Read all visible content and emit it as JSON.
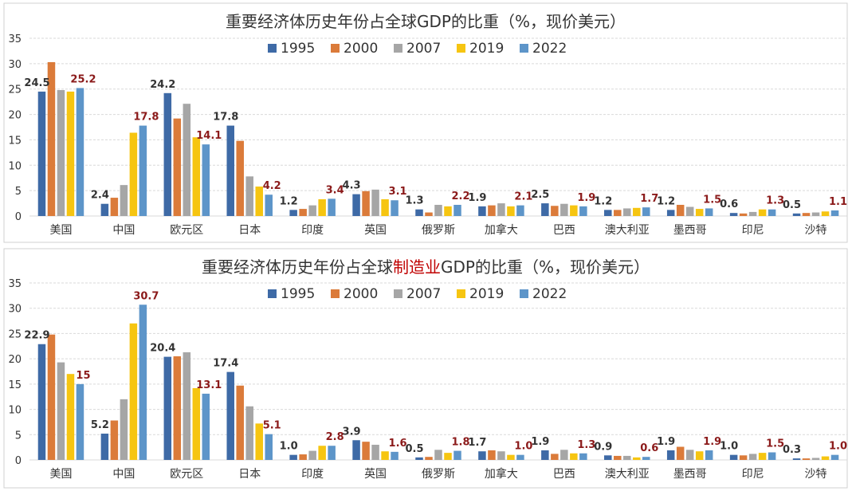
{
  "colors": {
    "series": [
      "#3E6AA6",
      "#DB7B3A",
      "#A6A6A6",
      "#F6C511",
      "#5D95C9"
    ],
    "highlight_text": "#8B1A1A",
    "label_text": "#333333",
    "title_text": "#333333",
    "title_highlight": "#C00000",
    "grid": "#D9D9D9",
    "panel_border": "#D0D0D0"
  },
  "chart_data": [
    {
      "type": "bar",
      "title_parts": [
        {
          "text": "重要经济体历史年份占全球GDP的比重（%，现价美元）",
          "highlight": false
        }
      ],
      "title": "重要经济体历史年份占全球GDP的比重（%，现价美元）",
      "categories": [
        "美国",
        "中国",
        "欧元区",
        "日本",
        "印度",
        "英国",
        "俄罗斯",
        "加拿大",
        "巴西",
        "澳大利亚",
        "墨西哥",
        "印尼",
        "沙特"
      ],
      "series": [
        {
          "name": "1995",
          "values": [
            24.5,
            2.4,
            24.2,
            17.8,
            1.2,
            4.3,
            1.3,
            1.9,
            2.5,
            1.2,
            1.2,
            0.6,
            0.5
          ]
        },
        {
          "name": "2000",
          "values": [
            30.3,
            3.6,
            19.2,
            14.8,
            1.4,
            4.9,
            0.7,
            2.1,
            2.0,
            1.2,
            2.2,
            0.5,
            0.6
          ]
        },
        {
          "name": "2007",
          "values": [
            24.8,
            6.1,
            22.1,
            7.8,
            2.1,
            5.2,
            2.2,
            2.5,
            2.4,
            1.5,
            1.8,
            0.8,
            0.7
          ]
        },
        {
          "name": "2019",
          "values": [
            24.5,
            16.4,
            15.5,
            5.8,
            3.3,
            3.3,
            1.9,
            1.9,
            2.1,
            1.6,
            1.4,
            1.3,
            0.9
          ]
        },
        {
          "name": "2022",
          "values": [
            25.2,
            17.8,
            14.1,
            4.2,
            3.4,
            3.1,
            2.2,
            2.1,
            1.9,
            1.7,
            1.5,
            1.3,
            1.1
          ]
        }
      ],
      "labels_1995": [
        "24.5",
        "2.4",
        "24.2",
        "17.8",
        "1.2",
        "4.3",
        "1.3",
        "1.9",
        "2.5",
        "1.2",
        "1.2",
        "0.6",
        "0.5"
      ],
      "labels_2022": [
        "25.2",
        "17.8",
        "14.1",
        "4.2",
        "3.4",
        "3.1",
        "2.2",
        "2.1",
        "1.9",
        "1.7",
        "1.5",
        "1.3",
        "1.1"
      ],
      "ylim": [
        0,
        35
      ],
      "yticks": [
        0,
        5,
        10,
        15,
        20,
        25,
        30,
        35
      ],
      "grid": true,
      "legend": "top-center",
      "xlabel": "",
      "ylabel": ""
    },
    {
      "type": "bar",
      "title_parts": [
        {
          "text": "重要经济体历史年份占全球",
          "highlight": false
        },
        {
          "text": "制造业",
          "highlight": true
        },
        {
          "text": "GDP的比重（%，现价美元）",
          "highlight": false
        }
      ],
      "title": "重要经济体历史年份占全球制造业GDP的比重（%，现价美元）",
      "categories": [
        "美国",
        "中国",
        "欧元区",
        "日本",
        "印度",
        "英国",
        "俄罗斯",
        "加拿大",
        "巴西",
        "澳大利亚",
        "墨西哥",
        "印尼",
        "沙特"
      ],
      "series": [
        {
          "name": "1995",
          "values": [
            22.9,
            5.2,
            20.4,
            17.4,
            1.0,
            3.9,
            0.5,
            1.7,
            1.9,
            0.9,
            1.9,
            1.0,
            0.3
          ]
        },
        {
          "name": "2000",
          "values": [
            24.8,
            7.8,
            20.5,
            14.7,
            1.1,
            3.6,
            0.6,
            1.9,
            1.2,
            0.8,
            2.6,
            0.9,
            0.3
          ]
        },
        {
          "name": "2007",
          "values": [
            19.3,
            12.0,
            21.3,
            10.6,
            1.8,
            3.0,
            2.0,
            1.7,
            2.0,
            0.8,
            2.0,
            1.2,
            0.4
          ]
        },
        {
          "name": "2019",
          "values": [
            17.0,
            27.0,
            14.2,
            7.2,
            2.8,
            1.7,
            1.4,
            1.0,
            1.3,
            0.5,
            1.7,
            1.4,
            0.7
          ]
        },
        {
          "name": "2022",
          "values": [
            15.0,
            30.7,
            13.1,
            5.1,
            2.8,
            1.6,
            1.8,
            1.0,
            1.3,
            0.6,
            1.9,
            1.5,
            1.0
          ]
        }
      ],
      "labels_1995": [
        "22.9",
        "5.2",
        "20.4",
        "17.4",
        "1.0",
        "3.9",
        "0.5",
        "1.7",
        "1.9",
        "0.9",
        "1.9",
        "1.0",
        "0.3"
      ],
      "labels_2022": [
        "15",
        "30.7",
        "13.1",
        "5.1",
        "2.8",
        "1.6",
        "1.8",
        "1.0",
        "1.3",
        "0.6",
        "1.9",
        "1.5",
        "1.0"
      ],
      "ylim": [
        0,
        35
      ],
      "yticks": [
        0,
        5,
        10,
        15,
        20,
        25,
        30,
        35
      ],
      "grid": true,
      "legend": "top-center",
      "xlabel": "",
      "ylabel": ""
    }
  ]
}
